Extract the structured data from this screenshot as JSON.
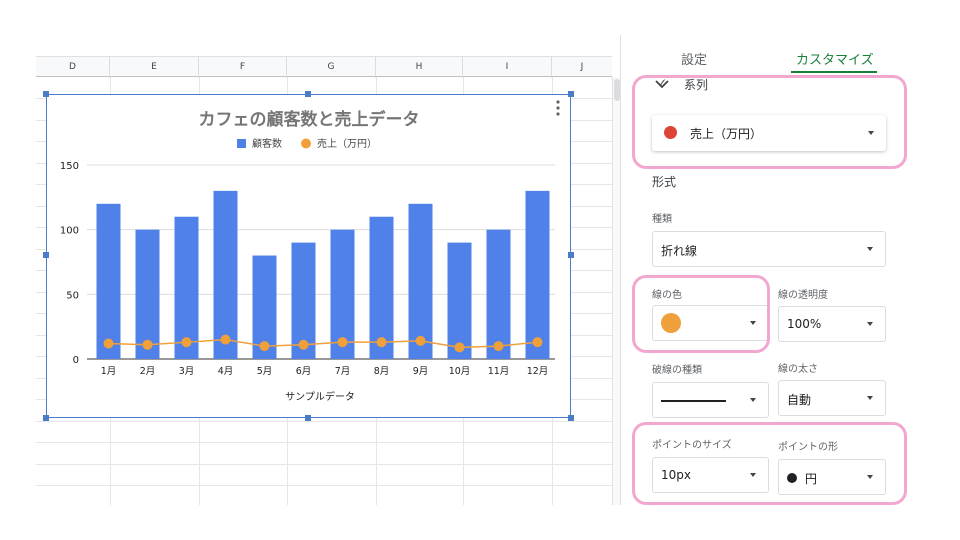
{
  "sheet": {
    "columns": [
      "D",
      "E",
      "F",
      "G",
      "H",
      "I",
      "J"
    ]
  },
  "chart_data": {
    "type": "bar+line",
    "title": "カフェの顧客数と売上データ",
    "xlabel": "サンプルデータ",
    "ylabel": "",
    "categories": [
      "1月",
      "2月",
      "3月",
      "4月",
      "5月",
      "6月",
      "7月",
      "8月",
      "9月",
      "10月",
      "11月",
      "12月"
    ],
    "ylim": [
      0,
      150
    ],
    "yticks": [
      "0",
      "50",
      "100",
      "150"
    ],
    "grid": true,
    "legend": "top",
    "series": [
      {
        "name": "顧客数",
        "type": "bar",
        "color": "#4f81e8",
        "values": [
          120,
          100,
          110,
          130,
          80,
          90,
          100,
          110,
          120,
          90,
          100,
          130
        ]
      },
      {
        "name": "売上（万円）",
        "type": "line",
        "color": "#f0a03a",
        "values": [
          12,
          11,
          13,
          15,
          10,
          11,
          13,
          13,
          14,
          9,
          10,
          13
        ]
      }
    ]
  },
  "panel": {
    "tabs": [
      {
        "label": "設定",
        "active": false
      },
      {
        "label": "カスタマイズ",
        "active": true
      }
    ],
    "section_title": "系列",
    "series_select": {
      "value": "売上（万円）",
      "color": "#db4437"
    },
    "format_heading": "形式",
    "type_label": "種類",
    "type_value": "折れ線",
    "line_color_label": "線の色",
    "line_color": "#f0a03a",
    "opacity_label": "線の透明度",
    "opacity_value": "100%",
    "dash_label": "破線の種類",
    "thickness_label": "線の太さ",
    "thickness_value": "自動",
    "point_size_label": "ポイントのサイズ",
    "point_size_value": "10px",
    "point_shape_label": "ポイントの形",
    "point_shape_value": "円",
    "accent": "#188038"
  }
}
